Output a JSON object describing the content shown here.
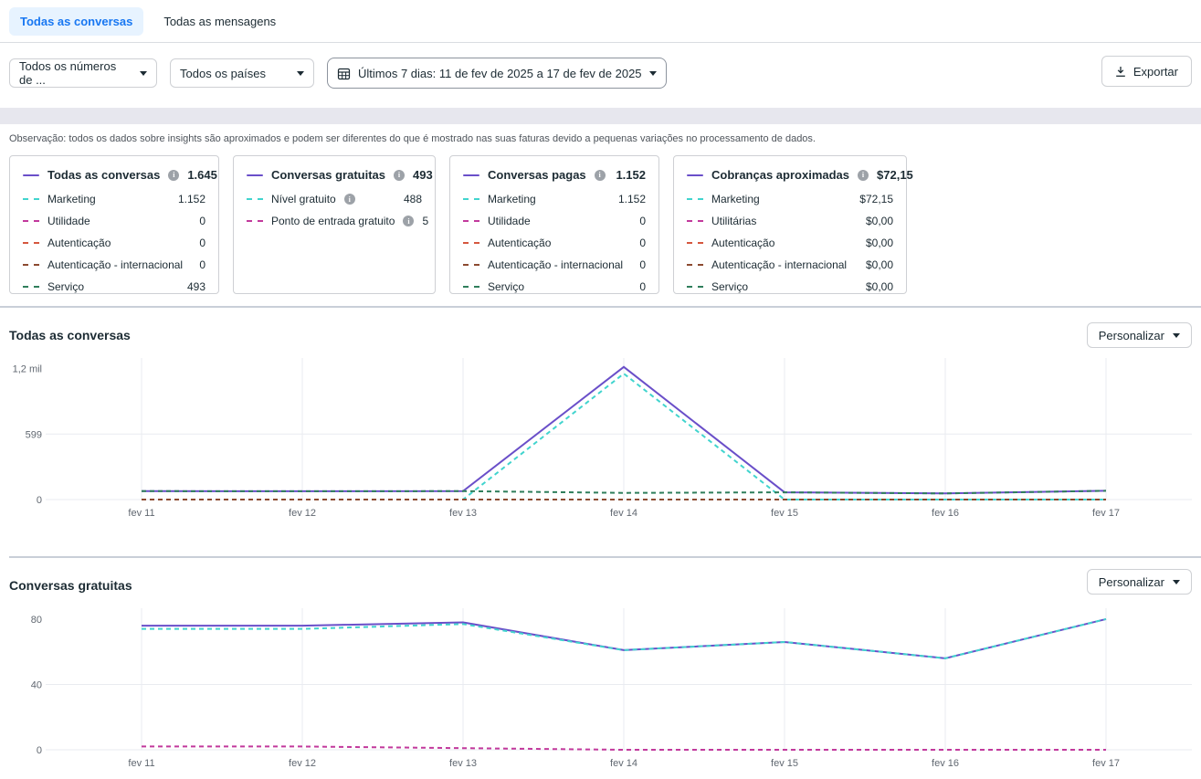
{
  "tabs": [
    {
      "label": "Todas as conversas",
      "active": true
    },
    {
      "label": "Todas as mensagens",
      "active": false
    }
  ],
  "filters": {
    "numbers_dropdown": "Todos os números de ...",
    "countries_dropdown": "Todos os países",
    "date_range": "Últimos 7 dias: 11 de fev de 2025 a 17 de fev de 2025"
  },
  "controls": {
    "export_label": "Exportar",
    "personalize_label": "Personalizar"
  },
  "note": "Observação: todos os dados sobre insights são aproximados e podem ser diferentes do que é mostrado nas suas faturas devido a pequenas variações no processamento de dados.",
  "theme": {
    "accent": "#1877F2",
    "purple": "#6A4FC9",
    "cyan": "#41D4CE",
    "magenta": "#C2399C",
    "red": "#D5573F",
    "maroon": "#8C4A30",
    "green": "#2F7E5B"
  },
  "cards": [
    {
      "header": {
        "label": "Todas as conversas",
        "value": "1.645",
        "color": "#6A4FC9",
        "info": true
      },
      "rows": [
        {
          "label": "Marketing",
          "value": "1.152",
          "color": "#41D4CE"
        },
        {
          "label": "Utilidade",
          "value": "0",
          "color": "#C2399C"
        },
        {
          "label": "Autenticação",
          "value": "0",
          "color": "#D5573F"
        },
        {
          "label": "Autenticação - internacional",
          "value": "0",
          "color": "#8C4A30"
        },
        {
          "label": "Serviço",
          "value": "493",
          "color": "#2F7E5B"
        }
      ]
    },
    {
      "header": {
        "label": "Conversas gratuitas",
        "value": "493",
        "color": "#6A4FC9",
        "info": true
      },
      "rows": [
        {
          "label": "Nível gratuito",
          "value": "488",
          "color": "#41D4CE",
          "info": true
        },
        {
          "label": "Ponto de entrada gratuito",
          "value": "5",
          "color": "#C2399C",
          "info": true
        }
      ]
    },
    {
      "header": {
        "label": "Conversas pagas",
        "value": "1.152",
        "color": "#6A4FC9",
        "info": true
      },
      "rows": [
        {
          "label": "Marketing",
          "value": "1.152",
          "color": "#41D4CE"
        },
        {
          "label": "Utilidade",
          "value": "0",
          "color": "#C2399C"
        },
        {
          "label": "Autenticação",
          "value": "0",
          "color": "#D5573F"
        },
        {
          "label": "Autenticação - internacional",
          "value": "0",
          "color": "#8C4A30"
        },
        {
          "label": "Serviço",
          "value": "0",
          "color": "#2F7E5B"
        }
      ]
    },
    {
      "header": {
        "label": "Cobranças aproximadas",
        "value": "$72,15",
        "color": "#6A4FC9",
        "info": true
      },
      "rows": [
        {
          "label": "Marketing",
          "value": "$72,15",
          "color": "#41D4CE"
        },
        {
          "label": "Utilitárias",
          "value": "$0,00",
          "color": "#C2399C"
        },
        {
          "label": "Autenticação",
          "value": "$0,00",
          "color": "#D5573F"
        },
        {
          "label": "Autenticação - internacional",
          "value": "$0,00",
          "color": "#8C4A30"
        },
        {
          "label": "Serviço",
          "value": "$0,00",
          "color": "#2F7E5B"
        }
      ]
    }
  ],
  "chart_data": [
    {
      "type": "line",
      "title": "Todas as conversas",
      "x": [
        "fev 11",
        "fev 12",
        "fev 13",
        "fev 14",
        "fev 15",
        "fev 16",
        "fev 17"
      ],
      "ymax": 1270,
      "yticks": [
        {
          "label": "1,2 mil",
          "value": 1200,
          "grid": false
        },
        {
          "label": "599",
          "value": 599,
          "grid": true
        },
        {
          "label": "0",
          "value": 0,
          "grid": true
        }
      ],
      "legend_position": "none",
      "grid": true,
      "series": [
        {
          "name": "Todas as conversas",
          "color": "#6A4FC9",
          "dashed": false,
          "values": [
            77,
            76,
            77,
            1213,
            66,
            56,
            80
          ]
        },
        {
          "name": "Marketing",
          "color": "#41D4CE",
          "dashed": true,
          "values": [
            0,
            0,
            0,
            1152,
            0,
            0,
            0
          ]
        },
        {
          "name": "Utilidade",
          "color": "#C2399C",
          "dashed": true,
          "values": [
            0,
            0,
            0,
            0,
            0,
            0,
            0
          ]
        },
        {
          "name": "Autenticação",
          "color": "#D5573F",
          "dashed": true,
          "values": [
            0,
            0,
            0,
            0,
            0,
            0,
            0
          ]
        },
        {
          "name": "Autenticação - internacional",
          "color": "#8C4A30",
          "dashed": true,
          "values": [
            0,
            0,
            0,
            0,
            0,
            0,
            0
          ]
        },
        {
          "name": "Serviço",
          "color": "#2F7E5B",
          "dashed": true,
          "values": [
            77,
            76,
            77,
            61,
            66,
            56,
            80
          ]
        }
      ]
    },
    {
      "type": "line",
      "title": "Conversas gratuitas",
      "x": [
        "fev 11",
        "fev 12",
        "fev 13",
        "fev 14",
        "fev 15",
        "fev 16",
        "fev 17"
      ],
      "ymax": 85,
      "yticks": [
        {
          "label": "80",
          "value": 80,
          "grid": false
        },
        {
          "label": "40",
          "value": 40,
          "grid": true
        },
        {
          "label": "0",
          "value": 0,
          "grid": true
        }
      ],
      "legend_position": "none",
      "grid": true,
      "series": [
        {
          "name": "Conversas gratuitas",
          "color": "#6A4FC9",
          "dashed": false,
          "values": [
            76,
            76,
            78,
            61,
            66,
            56,
            80
          ]
        },
        {
          "name": "Nível gratuito",
          "color": "#41D4CE",
          "dashed": true,
          "values": [
            74,
            74,
            77,
            61,
            66,
            56,
            80
          ]
        },
        {
          "name": "Ponto de entrada gratuito",
          "color": "#C2399C",
          "dashed": true,
          "values": [
            2,
            2,
            1,
            0,
            0,
            0,
            0
          ]
        }
      ]
    }
  ]
}
